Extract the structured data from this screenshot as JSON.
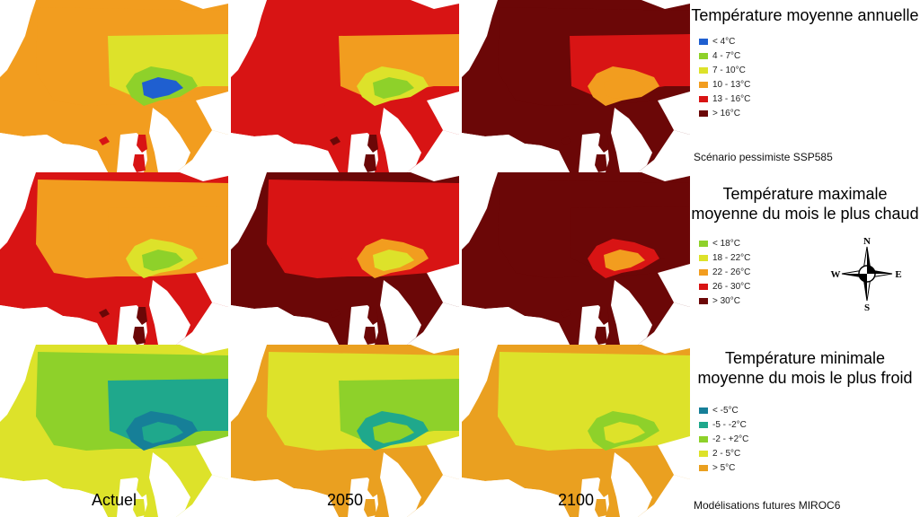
{
  "figure": {
    "periods": [
      "Actuel",
      "2050",
      "2100"
    ],
    "scenario_note": "Scénario pessimiste SSP585",
    "model_note": "Modélisations futures MIROC6"
  },
  "rows": [
    {
      "title_lines": [
        "Température moyenne annuelle"
      ],
      "legend": [
        {
          "label": "< 4°C",
          "color": "#1f5fd0"
        },
        {
          "label": "4 - 7°C",
          "color": "#8ed12a"
        },
        {
          "label": "7 - 10°C",
          "color": "#dde22a"
        },
        {
          "label": "10 - 13°C",
          "color": "#f29d1f"
        },
        {
          "label": "13 - 16°C",
          "color": "#d81414"
        },
        {
          "label": "> 16°C",
          "color": "#6b0707"
        }
      ],
      "maps": [
        [
          3,
          3,
          2,
          1,
          0
        ],
        [
          4,
          4,
          3,
          2,
          1
        ],
        [
          5,
          5,
          4,
          3,
          3
        ]
      ]
    },
    {
      "title_lines": [
        "Température maximale",
        "moyenne du mois le plus chaud"
      ],
      "legend": [
        {
          "label": "< 18°C",
          "color": "#8ed12a"
        },
        {
          "label": "18 - 22°C",
          "color": "#dde22a"
        },
        {
          "label": "22 - 26°C",
          "color": "#f29d1f"
        },
        {
          "label": "26 - 30°C",
          "color": "#d81414"
        },
        {
          "label": "> 30°C",
          "color": "#6b0707"
        }
      ],
      "maps": [
        [
          3,
          2,
          2,
          1,
          0
        ],
        [
          4,
          3,
          3,
          2,
          1
        ],
        [
          4,
          4,
          4,
          3,
          2
        ]
      ]
    },
    {
      "title_lines": [
        "Température minimale",
        "moyenne du mois le plus froid"
      ],
      "legend": [
        {
          "label": "< -5°C",
          "color": "#167f98"
        },
        {
          "label": "-5 - -2°C",
          "color": "#1fa88c"
        },
        {
          "label": "-2 - +2°C",
          "color": "#8ed12a"
        },
        {
          "label": "2 - 5°C",
          "color": "#dde22a"
        },
        {
          "label": "> 5°C",
          "color": "#eaa020"
        }
      ],
      "maps": [
        [
          3,
          2,
          1,
          0,
          1
        ],
        [
          4,
          3,
          2,
          1,
          2
        ],
        [
          4,
          3,
          3,
          2,
          3
        ]
      ]
    }
  ],
  "compass": {
    "north": "N",
    "south": "S",
    "east": "E",
    "west": "W"
  }
}
